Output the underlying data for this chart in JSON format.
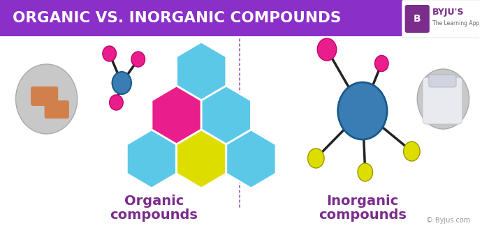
{
  "title": "ORGANIC VS. INORGANIC COMPOUNDS",
  "title_bg_color": "#8B2FC9",
  "title_text_color": "#FFFFFF",
  "bg_color": "#FFFFFF",
  "left_label_line1": "Organic",
  "left_label_line2": "compounds",
  "right_label_line1": "Inorganic",
  "right_label_line2": "compounds",
  "label_color": "#7B2D8B",
  "divider_color": "#9B59B6",
  "footer_text": "© Byjus.com",
  "hex_blue": "#5BC8E8",
  "hex_magenta": "#E91E8C",
  "hex_yellow": "#DDDD00",
  "atom_blue": "#3A7DB5",
  "atom_pink": "#E91E8C",
  "atom_yellow": "#DDDD00"
}
